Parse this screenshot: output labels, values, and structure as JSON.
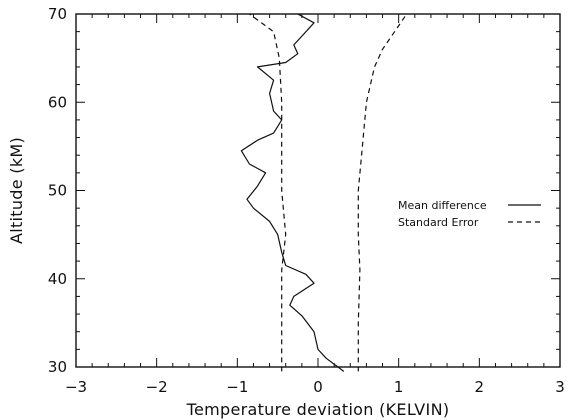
{
  "chart_data": {
    "type": "line",
    "title": "",
    "xlabel": "Temperature deviation (KELVIN)",
    "ylabel": "Altitude (kM)",
    "xlim": [
      -3,
      3
    ],
    "ylim": [
      30,
      70
    ],
    "xticks": [
      "-3",
      "-2",
      "-1",
      "0",
      "1",
      "2",
      "3"
    ],
    "yticks": [
      "30",
      "40",
      "50",
      "60",
      "70"
    ],
    "grid": false,
    "legend_position": "right",
    "series": [
      {
        "name": "Mean difference",
        "style": "solid",
        "points": [
          [
            0.32,
            29.5
          ],
          [
            0.1,
            31.0
          ],
          [
            0.0,
            32.0
          ],
          [
            -0.05,
            34.0
          ],
          [
            -0.2,
            35.8
          ],
          [
            -0.35,
            37.0
          ],
          [
            -0.3,
            38.0
          ],
          [
            -0.05,
            39.5
          ],
          [
            -0.15,
            40.5
          ],
          [
            -0.4,
            41.5
          ],
          [
            -0.45,
            43.0
          ],
          [
            -0.5,
            45.0
          ],
          [
            -0.6,
            46.5
          ],
          [
            -0.8,
            48.0
          ],
          [
            -0.88,
            49.0
          ],
          [
            -0.75,
            50.5
          ],
          [
            -0.65,
            52.0
          ],
          [
            -0.85,
            53.0
          ],
          [
            -0.95,
            54.5
          ],
          [
            -0.75,
            55.7
          ],
          [
            -0.55,
            56.5
          ],
          [
            -0.45,
            58.0
          ],
          [
            -0.55,
            59.0
          ],
          [
            -0.6,
            61.0
          ],
          [
            -0.55,
            62.5
          ],
          [
            -0.75,
            64.0
          ],
          [
            -0.4,
            64.5
          ],
          [
            -0.25,
            65.5
          ],
          [
            -0.3,
            66.5
          ],
          [
            -0.2,
            67.5
          ],
          [
            -0.05,
            69.0
          ],
          [
            -0.25,
            70.0
          ]
        ]
      },
      {
        "name": "Standard Error",
        "style": "dashed",
        "points": [
          [
            -0.45,
            29.5
          ],
          [
            -0.45,
            35.0
          ],
          [
            -0.45,
            41.0
          ],
          [
            -0.4,
            45.0
          ],
          [
            -0.45,
            50.0
          ],
          [
            -0.45,
            55.0
          ],
          [
            -0.45,
            60.0
          ],
          [
            -0.48,
            65.0
          ],
          [
            -0.55,
            68.0
          ],
          [
            -0.85,
            70.0
          ]
        ]
      },
      {
        "name": "",
        "style": "dashed",
        "points": [
          [
            0.5,
            29.5
          ],
          [
            0.5,
            35.0
          ],
          [
            0.52,
            41.0
          ],
          [
            0.5,
            45.0
          ],
          [
            0.5,
            50.0
          ],
          [
            0.55,
            55.0
          ],
          [
            0.6,
            60.0
          ],
          [
            0.7,
            64.0
          ],
          [
            0.8,
            66.0
          ],
          [
            0.95,
            68.0
          ],
          [
            1.1,
            70.0
          ]
        ]
      }
    ]
  }
}
